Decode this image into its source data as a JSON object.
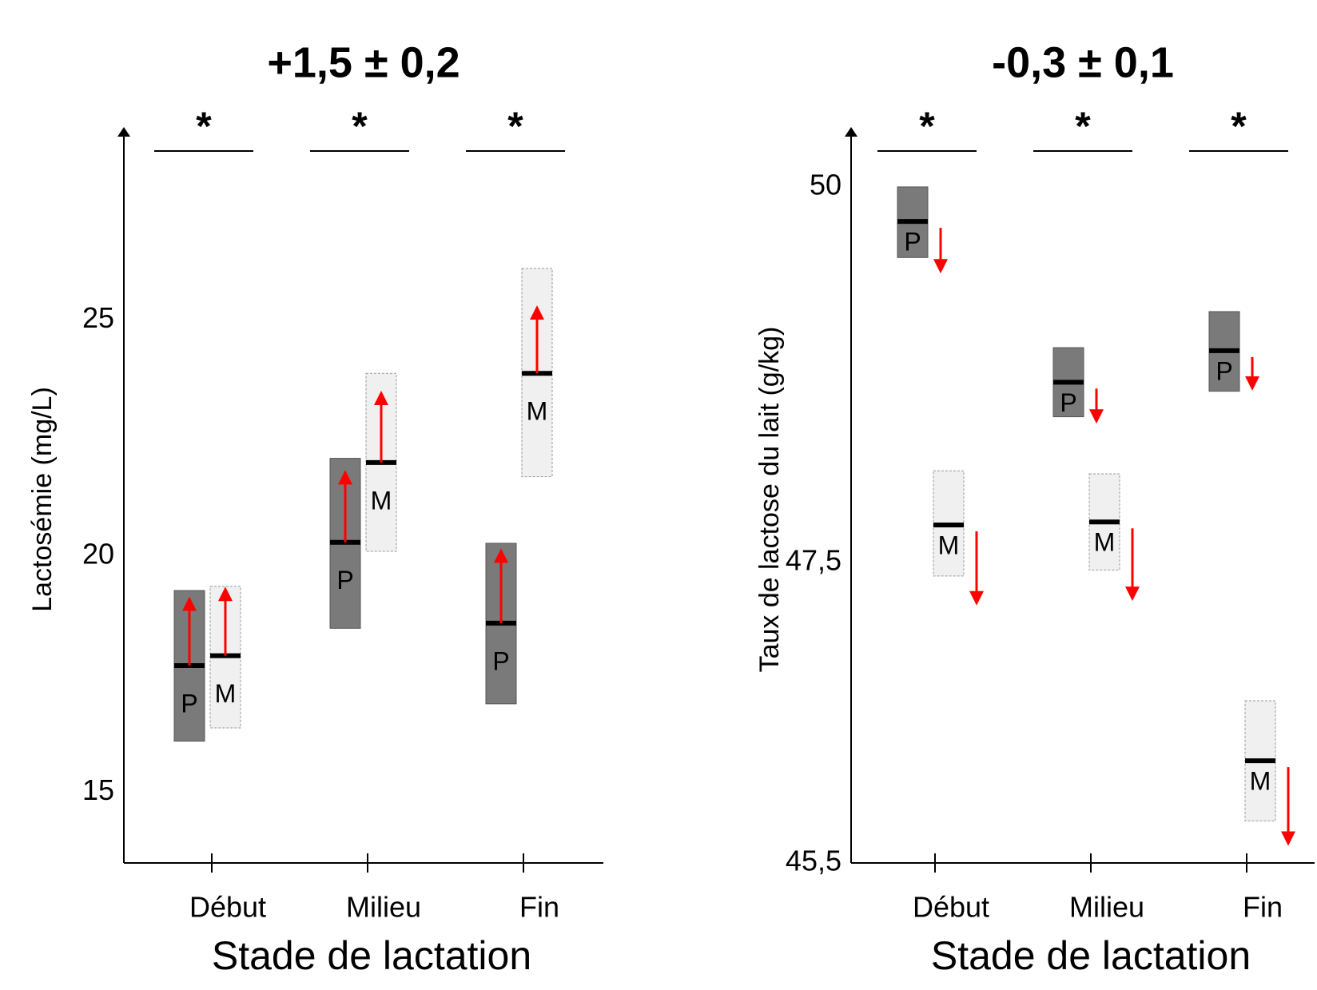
{
  "chart_data": [
    {
      "type": "range",
      "title": "+1,5 ± 0,2",
      "annotations": [
        "*",
        "*",
        "*"
      ],
      "x_label": "Stade de lactation",
      "y_label": "Lactosémie (mg/L)",
      "categories": [
        "Début",
        "Milieu",
        "Fin"
      ],
      "ylim": [
        13.5,
        28.9
      ],
      "yticks": [
        15,
        20,
        25
      ],
      "arrow_color": "#ff0000",
      "series": [
        {
          "name": "P",
          "color": "#7a7a7a",
          "low": [
            16.08,
            18.47,
            16.87
          ],
          "high": [
            19.27,
            22.07,
            20.27
          ],
          "mean": [
            17.68,
            20.29,
            18.58
          ],
          "arrow_end": [
            19.09,
            21.77,
            20.11
          ]
        },
        {
          "name": "M",
          "color": "#f0f0f0",
          "low": [
            16.36,
            20.1,
            21.68
          ],
          "high": [
            19.36,
            23.87,
            26.09
          ],
          "mean": [
            17.89,
            21.98,
            23.87
          ],
          "arrow_end": [
            19.3,
            23.45,
            25.26
          ]
        }
      ]
    },
    {
      "type": "range",
      "title": "-0,3 ± 0,1",
      "annotations": [
        "*",
        "*",
        "*"
      ],
      "x_label": "Stade de lactation",
      "y_label": "Taux de lactose du lait (g/kg)",
      "categories": [
        "Début",
        "Milieu",
        "Fin"
      ],
      "ylim": [
        45.5,
        50.34
      ],
      "yticks": [
        {
          "value": 45.5,
          "label": "45,5"
        },
        {
          "value": 47.5,
          "label": "47,5"
        },
        50
      ],
      "arrow_color": "#ff0000",
      "series": [
        {
          "name": "P",
          "color": "#7a7a7a",
          "low": [
            49.53,
            48.47,
            48.64
          ],
          "high": [
            50.0,
            48.93,
            49.17
          ],
          "mean": [
            49.77,
            48.7,
            48.91
          ],
          "arrow_end": [
            49.44,
            48.44,
            48.66
          ]
        },
        {
          "name": "M",
          "color": "#f0f0f0",
          "low": [
            47.41,
            47.45,
            45.78
          ],
          "high": [
            48.11,
            48.09,
            46.58
          ],
          "mean": [
            47.75,
            47.77,
            46.18
          ],
          "arrow_end": [
            47.23,
            47.26,
            45.63
          ]
        }
      ]
    }
  ]
}
